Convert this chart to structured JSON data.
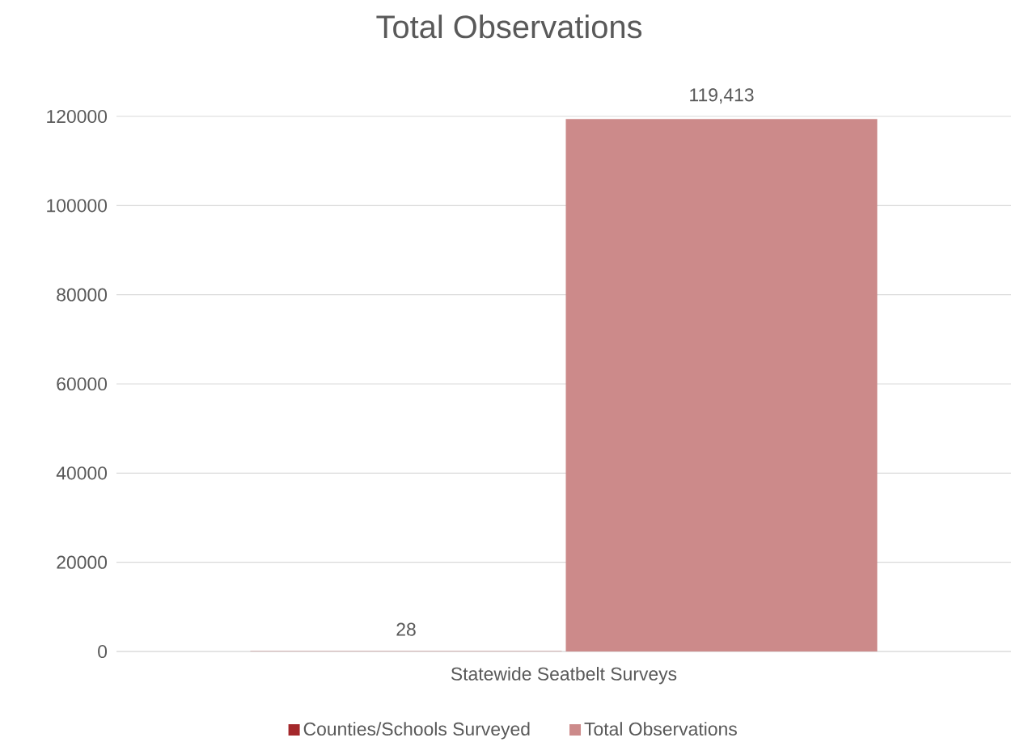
{
  "chart_data": {
    "type": "bar",
    "title": "Total Observations",
    "categories": [
      "Statewide Seatbelt Surveys"
    ],
    "series": [
      {
        "name": "Counties/Schools Surveyed",
        "color": "#a4282b",
        "values": [
          28
        ],
        "value_labels": [
          "28"
        ]
      },
      {
        "name": "Total Observations",
        "color": "#cc8a8a",
        "values": [
          119413
        ],
        "value_labels": [
          "119,413"
        ]
      }
    ],
    "ylim": [
      0,
      120000
    ],
    "yticks": [
      0,
      20000,
      40000,
      60000,
      80000,
      100000,
      120000
    ],
    "grid": "y",
    "legend": "bottom"
  }
}
